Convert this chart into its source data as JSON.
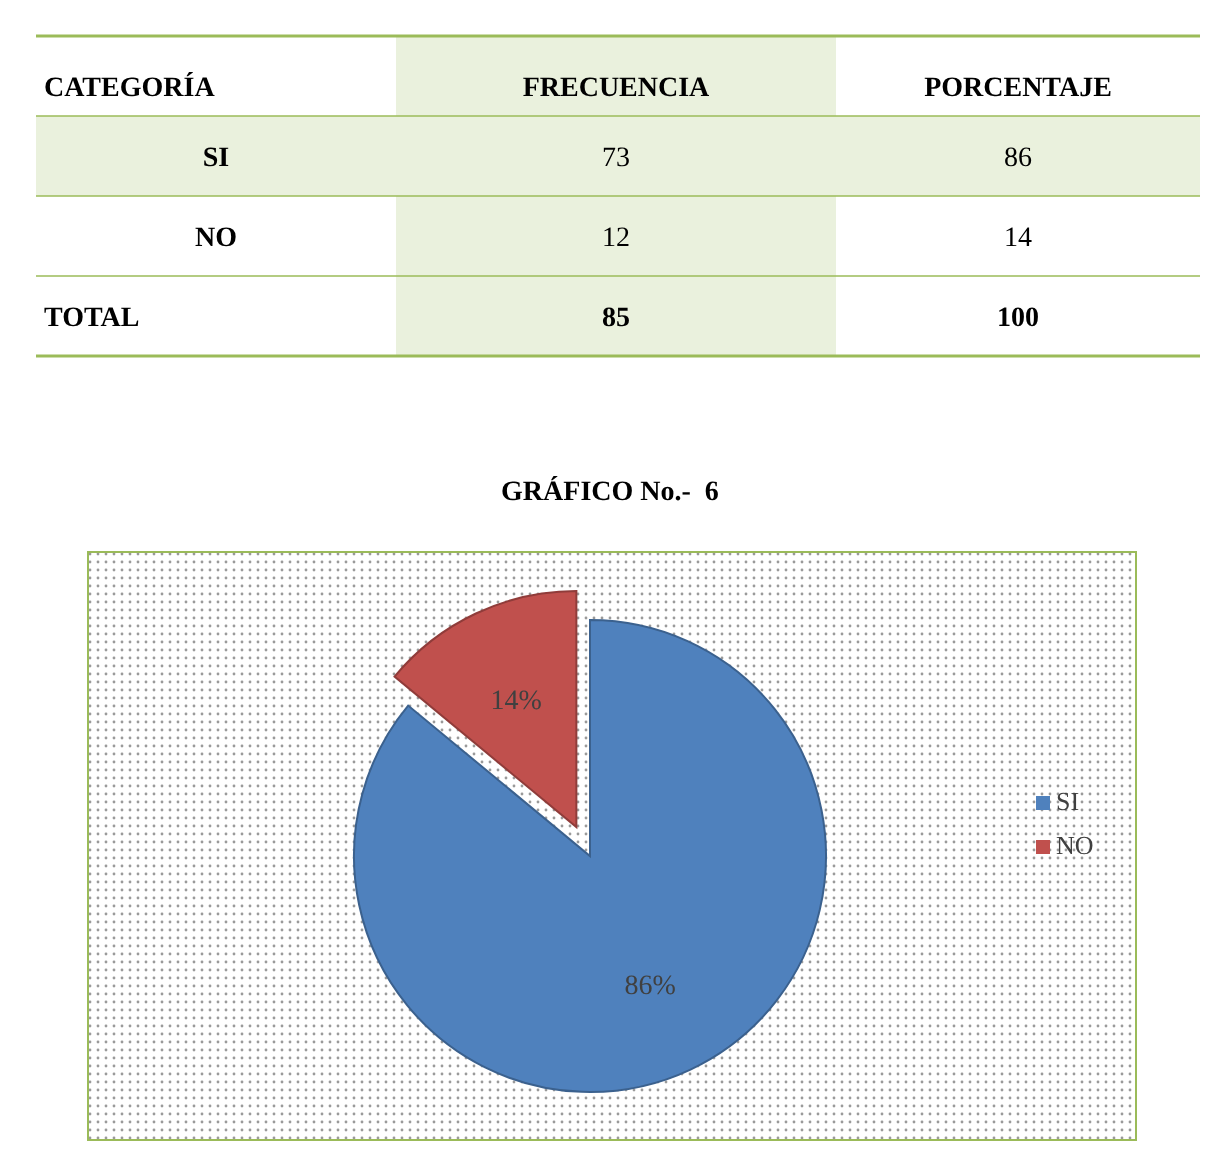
{
  "chart_data": [
    {
      "type": "other",
      "data_labels": true,
      "xlabel": "CATEGORÍA",
      "categories": [
        "SI",
        "NO",
        "TOTAL"
      ],
      "series": [
        {
          "name": "FRECUENCIA",
          "values": [
            73,
            12,
            85
          ]
        },
        {
          "name": "PORCENTAJE",
          "values": [
            86,
            14,
            100
          ]
        }
      ]
    },
    {
      "type": "pie",
      "title": "GRÁFICO No.-  6",
      "categories": [
        "SI",
        "NO"
      ],
      "values": [
        86,
        14
      ],
      "colors": [
        "#4f81bd",
        "#c0504d"
      ],
      "value_labels": [
        "86%",
        "14%"
      ],
      "legend": "right"
    }
  ]
}
